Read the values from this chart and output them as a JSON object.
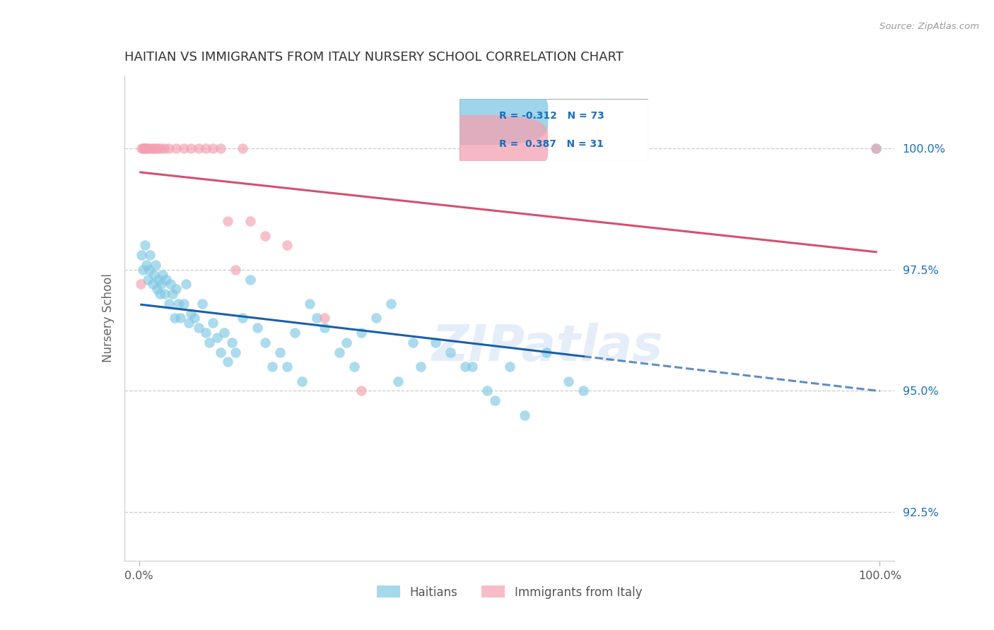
{
  "title": "HAITIAN VS IMMIGRANTS FROM ITALY NURSERY SCHOOL CORRELATION CHART",
  "source": "Source: ZipAtlas.com",
  "ylabel": "Nursery School",
  "y_ticks": [
    92.5,
    95.0,
    97.5,
    100.0
  ],
  "y_tick_labels": [
    "92.5%",
    "95.0%",
    "97.5%",
    "100.0%"
  ],
  "blue_color": "#7ec8e3",
  "pink_color": "#f4a0b0",
  "blue_line_color": "#1a5fa8",
  "pink_line_color": "#d45070",
  "legend_r_blue": "-0.312",
  "legend_n_blue": "73",
  "legend_r_pink": "0.387",
  "legend_n_pink": "31",
  "watermark": "ZIPatlas",
  "blue_points_x": [
    0.3,
    0.5,
    0.8,
    1.0,
    1.2,
    1.4,
    1.5,
    1.8,
    2.0,
    2.2,
    2.4,
    2.6,
    2.8,
    3.0,
    3.2,
    3.5,
    3.7,
    4.0,
    4.2,
    4.5,
    4.8,
    5.0,
    5.3,
    5.6,
    6.0,
    6.3,
    6.7,
    7.0,
    7.5,
    8.0,
    8.5,
    9.0,
    9.5,
    10.0,
    10.5,
    11.0,
    11.5,
    12.0,
    12.5,
    13.0,
    14.0,
    15.0,
    16.0,
    17.0,
    18.0,
    19.0,
    20.0,
    21.0,
    22.0,
    23.0,
    24.0,
    25.0,
    27.0,
    28.0,
    29.0,
    30.0,
    32.0,
    34.0,
    35.0,
    37.0,
    38.0,
    40.0,
    42.0,
    44.0,
    45.0,
    47.0,
    48.0,
    50.0,
    52.0,
    55.0,
    58.0,
    60.0,
    99.5
  ],
  "blue_points_y": [
    97.8,
    97.5,
    98.0,
    97.6,
    97.3,
    97.5,
    97.8,
    97.2,
    97.4,
    97.6,
    97.1,
    97.3,
    97.0,
    97.2,
    97.4,
    97.0,
    97.3,
    96.8,
    97.2,
    97.0,
    96.5,
    97.1,
    96.8,
    96.5,
    96.8,
    97.2,
    96.4,
    96.6,
    96.5,
    96.3,
    96.8,
    96.2,
    96.0,
    96.4,
    96.1,
    95.8,
    96.2,
    95.6,
    96.0,
    95.8,
    96.5,
    97.3,
    96.3,
    96.0,
    95.5,
    95.8,
    95.5,
    96.2,
    95.2,
    96.8,
    96.5,
    96.3,
    95.8,
    96.0,
    95.5,
    96.2,
    96.5,
    96.8,
    95.2,
    96.0,
    95.5,
    96.0,
    95.8,
    95.5,
    95.5,
    95.0,
    94.8,
    95.5,
    94.5,
    95.8,
    95.2,
    95.0,
    100.0
  ],
  "pink_points_x": [
    0.2,
    0.3,
    0.5,
    0.7,
    0.8,
    1.0,
    1.2,
    1.5,
    1.8,
    2.0,
    2.3,
    2.6,
    3.0,
    3.5,
    4.0,
    5.0,
    6.0,
    7.0,
    8.0,
    9.0,
    10.0,
    11.0,
    12.0,
    13.0,
    14.0,
    15.0,
    17.0,
    20.0,
    25.0,
    30.0,
    99.5
  ],
  "pink_points_y": [
    97.2,
    100.0,
    100.0,
    100.0,
    100.0,
    100.0,
    100.0,
    100.0,
    100.0,
    100.0,
    100.0,
    100.0,
    100.0,
    100.0,
    100.0,
    100.0,
    100.0,
    100.0,
    100.0,
    100.0,
    100.0,
    100.0,
    98.5,
    97.5,
    100.0,
    98.5,
    98.2,
    98.0,
    96.5,
    95.0,
    100.0
  ],
  "xlim": [
    -2,
    102
  ],
  "ylim": [
    91.5,
    101.5
  ],
  "background_color": "#ffffff",
  "grid_color": "#cccccc",
  "label_blue": "Haitians",
  "label_pink": "Immigrants from Italy"
}
